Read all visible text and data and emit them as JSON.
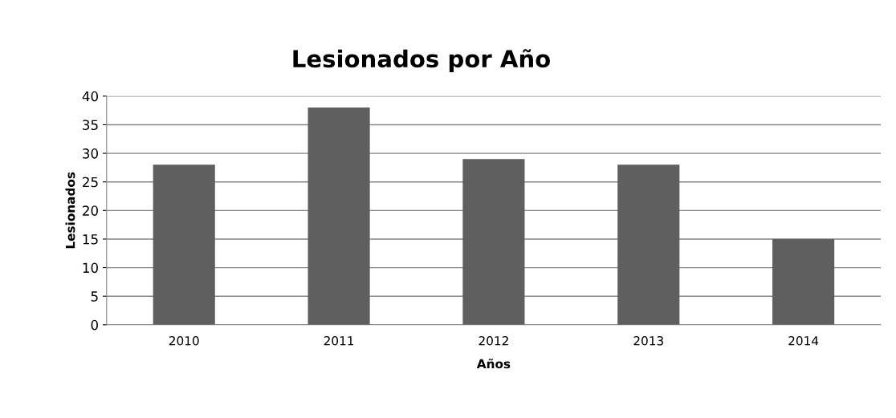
{
  "chart_data": {
    "type": "bar",
    "title": "Lesionados por Año",
    "xlabel": "Años",
    "ylabel": "Lesionados",
    "categories": [
      "2010",
      "2011",
      "2012",
      "2013",
      "2014"
    ],
    "values": [
      28,
      38,
      29,
      28,
      15
    ],
    "color": "#5f5f5f",
    "ylim": [
      0,
      40
    ],
    "yticks": [
      0,
      5,
      10,
      15,
      20,
      25,
      30,
      35,
      40
    ],
    "grid": "y",
    "legend": false
  }
}
